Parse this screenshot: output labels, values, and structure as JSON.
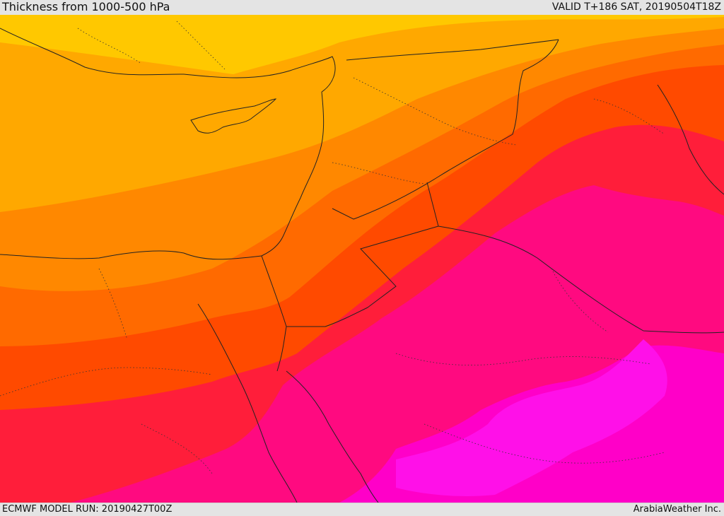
{
  "header": {
    "title": "Thickness from 1000-500 hPa",
    "valid": "VALID T+186 SAT, 20190504T18Z"
  },
  "footer": {
    "model_run": "ECMWF MODEL RUN: 20190427T00Z",
    "credit": "ArabiaWeather Inc."
  },
  "map": {
    "field": "1000-500 hPa thickness",
    "color_bands": [
      "#ffe400",
      "#ffc800",
      "#ffa800",
      "#ff8800",
      "#ff6a00",
      "#ff4a00",
      "#ff1e3a",
      "#ff0a80",
      "#ff00c8",
      "#ff10e8"
    ],
    "border_color": "#222222",
    "internal_boundary_style": "dotted"
  }
}
